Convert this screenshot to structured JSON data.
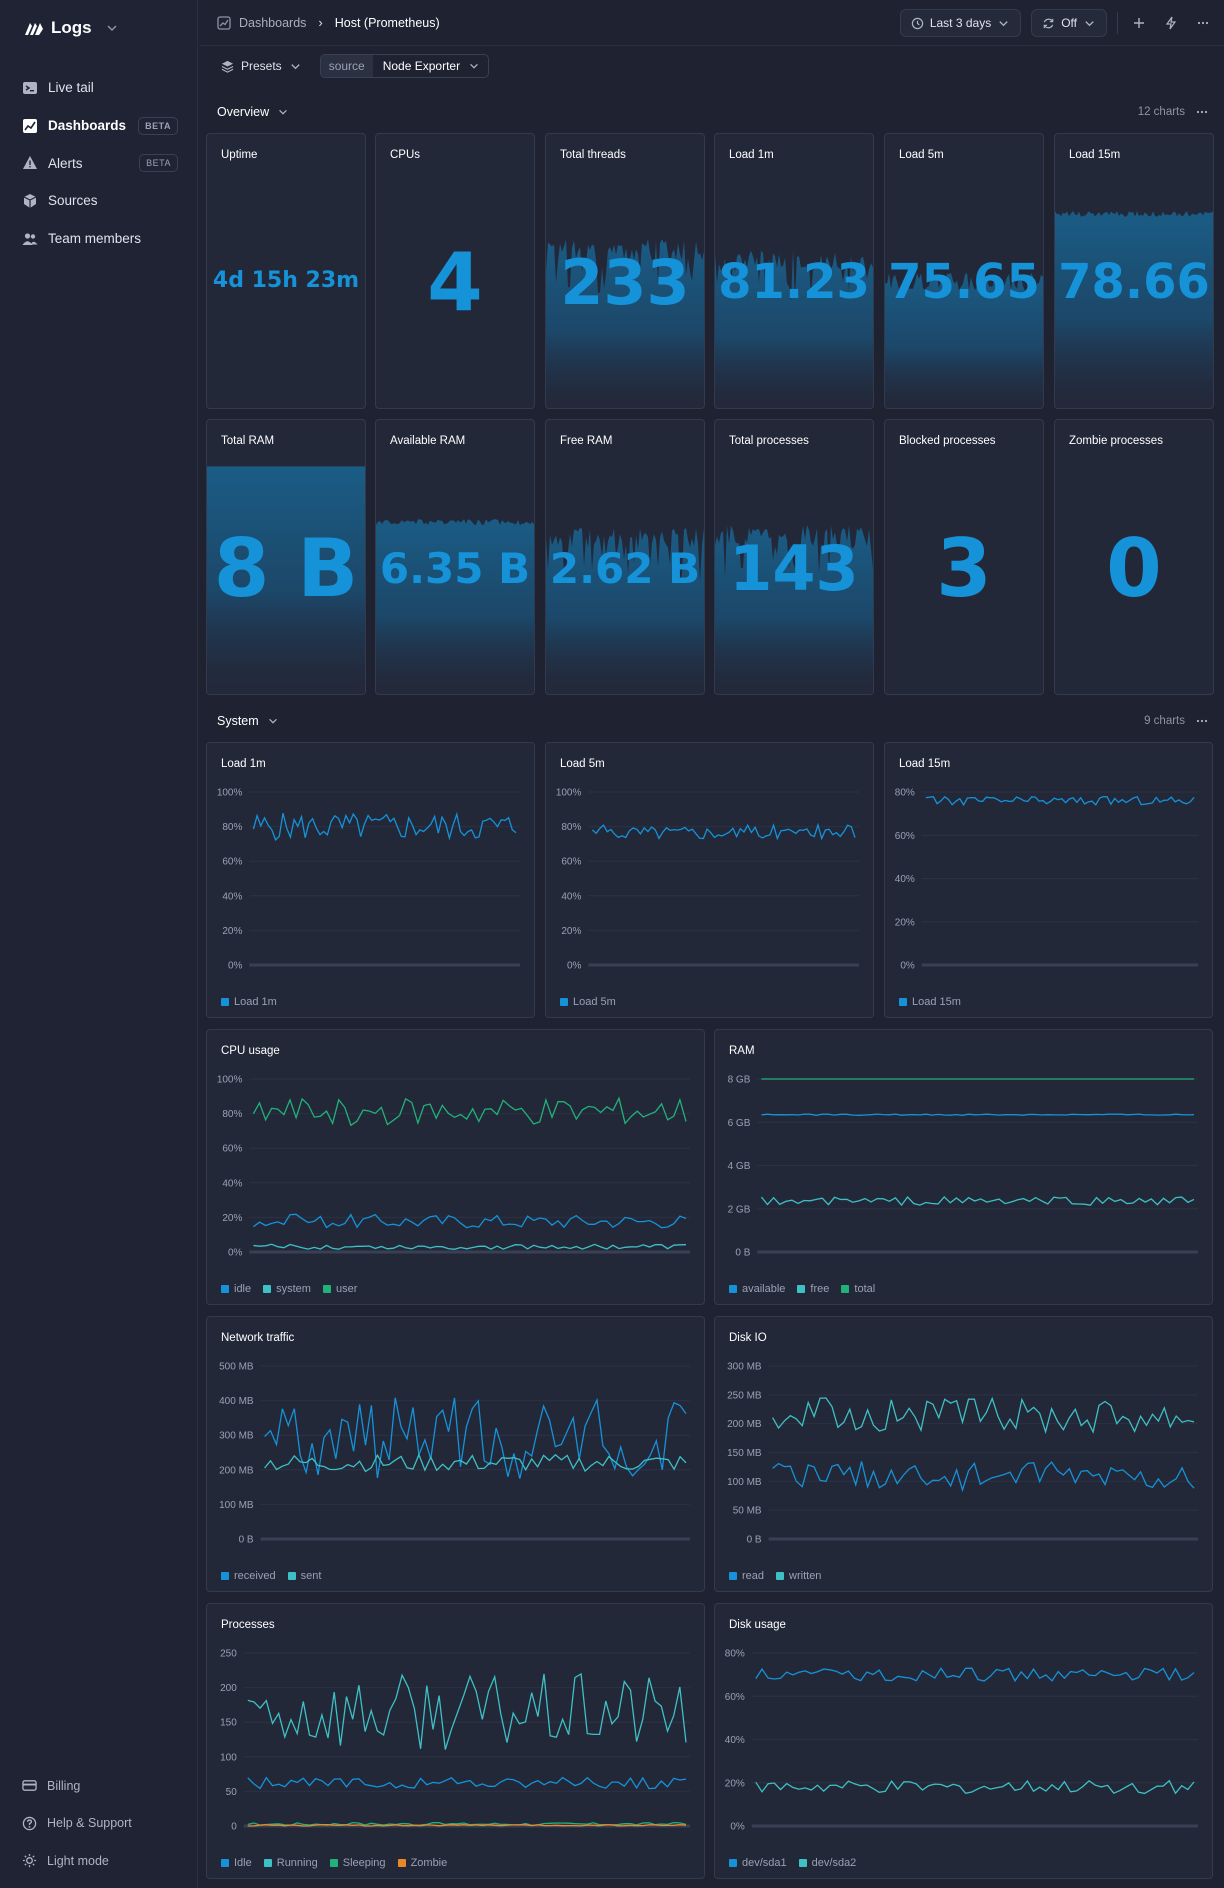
{
  "app": {
    "name": "Logs"
  },
  "sidebar": {
    "items": [
      {
        "label": "Live tail",
        "icon": "terminal-icon"
      },
      {
        "label": "Dashboards",
        "icon": "chart-icon",
        "badge": "BETA",
        "active": true
      },
      {
        "label": "Alerts",
        "icon": "warning-icon",
        "badge": "BETA"
      },
      {
        "label": "Sources",
        "icon": "cubes-icon"
      },
      {
        "label": "Team members",
        "icon": "users-icon"
      }
    ],
    "bottom": [
      {
        "label": "Billing",
        "icon": "credit-card-icon"
      },
      {
        "label": "Help & Support",
        "icon": "help-icon"
      },
      {
        "label": "Light mode",
        "icon": "sun-icon"
      }
    ]
  },
  "breadcrumb": {
    "parent": "Dashboards",
    "current": "Host (Prometheus)"
  },
  "toolbar": {
    "time_range": "Last 3 days",
    "refresh": "Off"
  },
  "filters": {
    "presets_label": "Presets",
    "source_key": "source",
    "source_value": "Node Exporter"
  },
  "colors": {
    "accent": "#1592d8",
    "teal": "#3ec0c4",
    "green": "#20b27a",
    "orange": "#e8882a",
    "bg": "#1e2231",
    "card": "#232839"
  },
  "sections": {
    "overview": {
      "title": "Overview",
      "count": "12 charts"
    },
    "system": {
      "title": "System",
      "count": "9 charts"
    }
  },
  "stats": [
    {
      "title": "Uptime",
      "value": "4d 15h 23m"
    },
    {
      "title": "CPUs",
      "value": "4"
    },
    {
      "title": "Total threads",
      "value": "233"
    },
    {
      "title": "Load 1m",
      "value": "81.23"
    },
    {
      "title": "Load 5m",
      "value": "75.65"
    },
    {
      "title": "Load 15m",
      "value": "78.66"
    },
    {
      "title": "Total RAM",
      "value": "8 B"
    },
    {
      "title": "Available RAM",
      "value": "6.35 B"
    },
    {
      "title": "Free RAM",
      "value": "2.62 B"
    },
    {
      "title": "Total processes",
      "value": "143"
    },
    {
      "title": "Blocked processes",
      "value": "3"
    },
    {
      "title": "Zombie processes",
      "value": "0"
    }
  ],
  "chart_data": [
    {
      "type": "line",
      "title": "Load 1m",
      "yticks": [
        "0%",
        "20%",
        "40%",
        "60%",
        "80%",
        "100%"
      ],
      "ylim": [
        0,
        100
      ],
      "series": [
        {
          "name": "Load 1m",
          "color": "#1592d8",
          "mean": 80,
          "amp": 8
        }
      ]
    },
    {
      "type": "line",
      "title": "Load 5m",
      "yticks": [
        "0%",
        "20%",
        "40%",
        "60%",
        "80%",
        "100%"
      ],
      "ylim": [
        0,
        100
      ],
      "series": [
        {
          "name": "Load 5m",
          "color": "#1592d8",
          "mean": 77,
          "amp": 4
        }
      ]
    },
    {
      "type": "line",
      "title": "Load 15m",
      "yticks": [
        "0%",
        "20%",
        "40%",
        "60%",
        "80%"
      ],
      "ylim": [
        0,
        80
      ],
      "series": [
        {
          "name": "Load 15m",
          "color": "#1592d8",
          "mean": 76,
          "amp": 2
        }
      ]
    },
    {
      "type": "line",
      "title": "CPU usage",
      "yticks": [
        "0%",
        "20%",
        "40%",
        "60%",
        "80%",
        "100%"
      ],
      "ylim": [
        0,
        100
      ],
      "series": [
        {
          "name": "idle",
          "color": "#1592d8",
          "mean": 18,
          "amp": 4
        },
        {
          "name": "system",
          "color": "#3ec0c4",
          "mean": 3,
          "amp": 1.5
        },
        {
          "name": "user",
          "color": "#20b27a",
          "mean": 81,
          "amp": 8
        }
      ]
    },
    {
      "type": "line",
      "title": "RAM",
      "yticks": [
        "0 B",
        "2 GB",
        "4 GB",
        "6 GB",
        "8 GB"
      ],
      "ylim": [
        0,
        8
      ],
      "series": [
        {
          "name": "available",
          "color": "#1592d8",
          "mean": 6.35,
          "amp": 0.03
        },
        {
          "name": "free",
          "color": "#3ec0c4",
          "mean": 2.35,
          "amp": 0.2
        },
        {
          "name": "total",
          "color": "#20b27a",
          "mean": 8,
          "amp": 0
        }
      ]
    },
    {
      "type": "line",
      "title": "Network traffic",
      "yticks": [
        "0 B",
        "100 MB",
        "200 MB",
        "300 MB",
        "400 MB",
        "500 MB"
      ],
      "ylim": [
        0,
        500
      ],
      "series": [
        {
          "name": "received",
          "color": "#1592d8",
          "mean": 290,
          "amp": 120
        },
        {
          "name": "sent",
          "color": "#3ec0c4",
          "mean": 220,
          "amp": 25
        }
      ]
    },
    {
      "type": "line",
      "title": "Disk IO",
      "yticks": [
        "0 B",
        "50 MB",
        "100 MB",
        "150 MB",
        "200 MB",
        "250 MB",
        "300 MB"
      ],
      "ylim": [
        0,
        300
      ],
      "series": [
        {
          "name": "read",
          "color": "#1592d8",
          "mean": 110,
          "amp": 25
        },
        {
          "name": "written",
          "color": "#3ec0c4",
          "mean": 215,
          "amp": 30
        }
      ]
    },
    {
      "type": "line",
      "title": "Processes",
      "yticks": [
        "0",
        "50",
        "100",
        "150",
        "200",
        "250"
      ],
      "ylim": [
        0,
        250
      ],
      "series": [
        {
          "name": "Idle",
          "color": "#1592d8",
          "mean": 62,
          "amp": 8
        },
        {
          "name": "Running",
          "color": "#3ec0c4",
          "mean": 165,
          "amp": 55
        },
        {
          "name": "Sleeping",
          "color": "#20b27a",
          "mean": 3,
          "amp": 2
        },
        {
          "name": "Zombie",
          "color": "#e8882a",
          "mean": 1,
          "amp": 1
        }
      ]
    },
    {
      "type": "line",
      "title": "Disk usage",
      "yticks": [
        "0%",
        "20%",
        "40%",
        "60%",
        "80%"
      ],
      "ylim": [
        0,
        80
      ],
      "series": [
        {
          "name": "dev/sda1",
          "color": "#1592d8",
          "mean": 70,
          "amp": 3
        },
        {
          "name": "dev/sda2",
          "color": "#3ec0c4",
          "mean": 18,
          "amp": 3
        }
      ]
    }
  ]
}
